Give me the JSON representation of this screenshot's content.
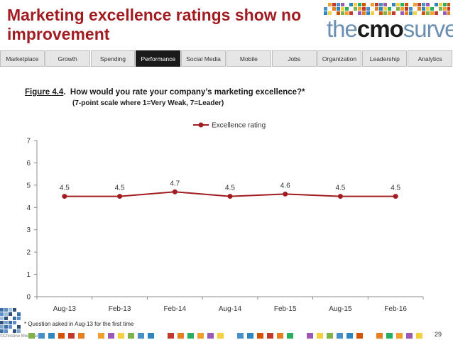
{
  "title": "Marketing excellence ratings show no improvement",
  "logo": {
    "part1": "the",
    "part2": "cmo",
    "part3": "survey"
  },
  "nav": [
    {
      "label": "Marketplace",
      "active": false
    },
    {
      "label": "Growth",
      "active": false
    },
    {
      "label": "Spending",
      "active": false
    },
    {
      "label": "Performance",
      "active": true
    },
    {
      "label": "Social Media",
      "active": false
    },
    {
      "label": "Mobile",
      "active": false
    },
    {
      "label": "Jobs",
      "active": false
    },
    {
      "label": "Organization",
      "active": false
    },
    {
      "label": "Leadership",
      "active": false
    },
    {
      "label": "Analytics",
      "active": false
    }
  ],
  "figure": {
    "label": "Figure 4.4",
    "question": "How would you rate your company’s marketing excellence?*",
    "subtitle": "(7-point scale where 1=Very Weak, 7=Leader)"
  },
  "chart_data": {
    "type": "line",
    "categories": [
      "Aug-13",
      "Feb-13",
      "Feb-14",
      "Aug-14",
      "Feb-15",
      "Aug-15",
      "Feb-16"
    ],
    "series": [
      {
        "name": "Excellence rating",
        "values": [
          4.5,
          4.5,
          4.7,
          4.5,
          4.6,
          4.5,
          4.5
        ],
        "color": "#a11c21"
      }
    ],
    "data_labels": [
      "4.5",
      "4.5",
      "4.7",
      "4.5",
      "4.6",
      "4.5",
      "4.5"
    ],
    "yticks": [
      "0",
      "1",
      "2",
      "3",
      "4",
      "5",
      "6",
      "7"
    ],
    "ylim": [
      0,
      7
    ],
    "legend_position": "top-center",
    "grid": false
  },
  "footnote": "* Question asked in Aug-13 for the first time",
  "page_number": "29",
  "copyright": "©Christine Moorman",
  "colors": {
    "accent": "#a11c21",
    "nav_active": "#1a1a1a"
  }
}
